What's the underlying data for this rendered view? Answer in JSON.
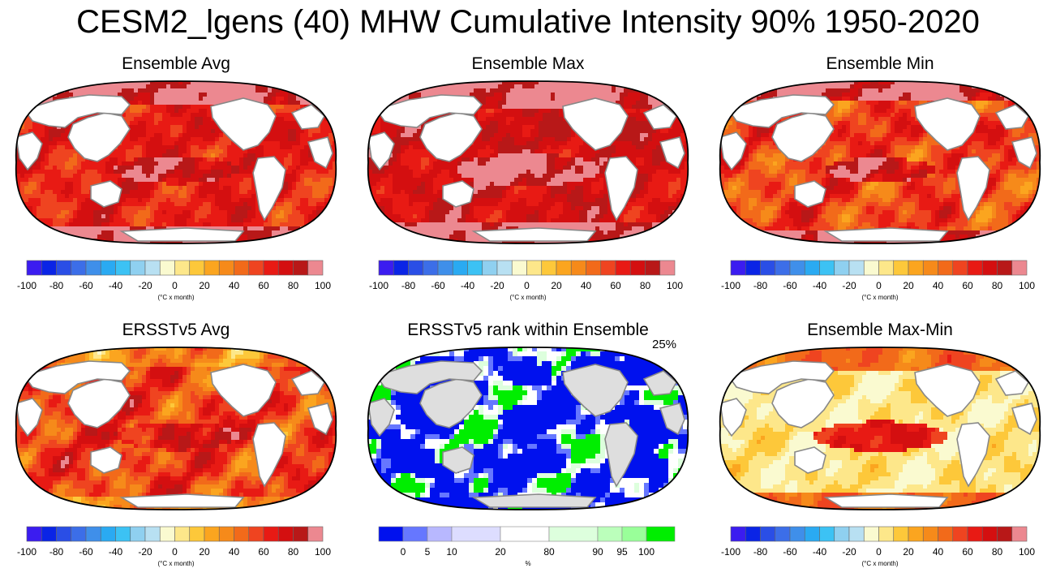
{
  "figure_title": "CESM2_lgens (40) MHW Cumulative Intensity 90% 1950-2020",
  "colors": {
    "intensity_scale": [
      "#3b1cf0",
      "#0a24e6",
      "#2a4ee6",
      "#3c6ee8",
      "#3f8fea",
      "#2aaaf2",
      "#3cc2f4",
      "#8fd0f0",
      "#b8e0f2",
      "#fafad0",
      "#fde78a",
      "#fdc83a",
      "#fba51f",
      "#f68a1a",
      "#f26a1a",
      "#ef4420",
      "#e81a14",
      "#d40f10",
      "#b81818",
      "#ec8890"
    ],
    "rank_scale": [
      "#0011ee",
      "#6677ff",
      "#b8b8ff",
      "#ddddff",
      "#ffffff",
      "#ddffdd",
      "#bbffbb",
      "#99ff99",
      "#00ee00"
    ],
    "land": "#ffffff",
    "land_rank_panel": "#dedede",
    "coast": "#888888"
  },
  "panels": [
    {
      "id": "ensemble-avg",
      "title": "Ensemble Avg",
      "colorbar": "intensity",
      "units": "(°C x month)",
      "percent": ""
    },
    {
      "id": "ensemble-max",
      "title": "Ensemble Max",
      "colorbar": "intensity",
      "units": "(°C x month)",
      "percent": ""
    },
    {
      "id": "ensemble-min",
      "title": "Ensemble Min",
      "colorbar": "intensity",
      "units": "(°C x month)",
      "percent": ""
    },
    {
      "id": "ersst-avg",
      "title": "ERSSTv5 Avg",
      "colorbar": "intensity",
      "units": "(°C x month)",
      "percent": ""
    },
    {
      "id": "ersst-rank",
      "title": "ERSSTv5 rank within Ensemble",
      "colorbar": "rank",
      "units": "%",
      "percent": "25%"
    },
    {
      "id": "ensemble-maxmin",
      "title": "Ensemble Max-Min",
      "colorbar": "intensity",
      "units": "(°C x month)",
      "percent": ""
    }
  ],
  "chart_data": {
    "type": "heatmap",
    "title": "CESM2_lgens (40) MHW Cumulative Intensity 90% 1950-2020",
    "intensity_colorbar": {
      "units": "(°C x month)",
      "tick_labels": [
        "-100",
        "-80",
        "-60",
        "-40",
        "-20",
        "0",
        "20",
        "40",
        "60",
        "80",
        "100"
      ]
    },
    "rank_colorbar": {
      "units": "%",
      "tick_labels": [
        "0",
        "5",
        "10",
        "20",
        "80",
        "90",
        "95",
        "100"
      ]
    },
    "rank_fraction_label": "25%"
  }
}
